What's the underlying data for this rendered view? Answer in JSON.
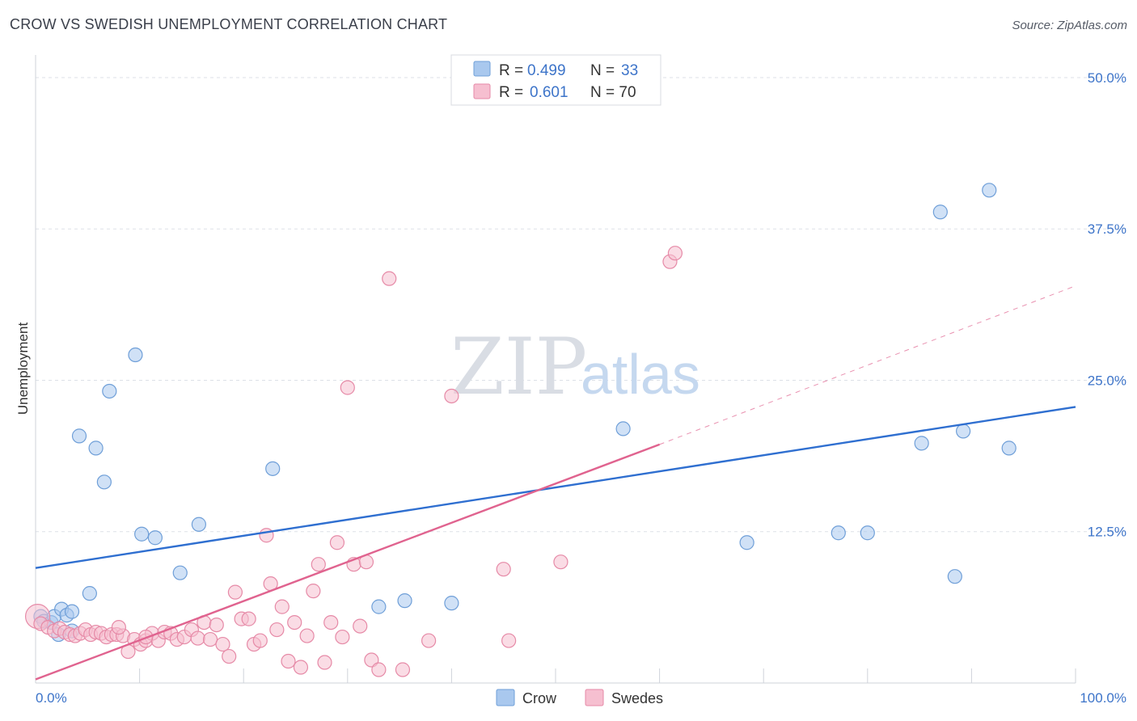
{
  "title": "CROW VS SWEDISH UNEMPLOYMENT CORRELATION CHART",
  "source": "Source: ZipAtlas.com",
  "watermark": {
    "zip": "ZIP",
    "atlas": "atlas"
  },
  "legend": {
    "series": [
      {
        "r_label": "R =",
        "r_value": "0.499",
        "n_label": "N =",
        "n_value": "33",
        "color": "#a9c8ee",
        "stroke": "#6f9fd8"
      },
      {
        "r_label": "R =",
        "r_value": "0.601",
        "n_label": "N = 70",
        "n_value": "",
        "color": "#f6bfd0",
        "stroke": "#e68aa7"
      }
    ]
  },
  "bottom_legend": [
    {
      "label": "Crow",
      "color": "#a9c8ee",
      "stroke": "#6f9fd8"
    },
    {
      "label": "Swedes",
      "color": "#f6bfd0",
      "stroke": "#e68aa7"
    }
  ],
  "chart_data": {
    "type": "scatter",
    "xlabel": "",
    "ylabel": "Unemployment",
    "xlim": [
      0,
      100
    ],
    "ylim": [
      0,
      50
    ],
    "x_tick_labels": [
      {
        "value": 0,
        "label": "0.0%"
      },
      {
        "value": 100,
        "label": "100.0%"
      }
    ],
    "y_tick_labels": [
      {
        "value": 12.5,
        "label": "12.5%"
      },
      {
        "value": 25.0,
        "label": "25.0%"
      },
      {
        "value": 37.5,
        "label": "37.5%"
      },
      {
        "value": 50.0,
        "label": "50.0%"
      }
    ],
    "grid": true,
    "legend_position": "top-center",
    "series": [
      {
        "name": "Crow",
        "color": "#a9c8ee",
        "stroke": "#6f9fd8",
        "trend": {
          "x0": 0,
          "y0": 9.5,
          "x1": 100,
          "y1": 22.8,
          "color": "#2f6fd0"
        },
        "points": [
          [
            0.5,
            5.5
          ],
          [
            0.8,
            5.1
          ],
          [
            1.5,
            5.0
          ],
          [
            1.8,
            5.5
          ],
          [
            2.2,
            4.0
          ],
          [
            2.5,
            6.1
          ],
          [
            3.0,
            5.6
          ],
          [
            3.5,
            5.9
          ],
          [
            3.5,
            4.3
          ],
          [
            5.2,
            7.4
          ],
          [
            4.2,
            20.4
          ],
          [
            5.8,
            19.4
          ],
          [
            6.6,
            16.6
          ],
          [
            7.1,
            24.1
          ],
          [
            9.6,
            27.1
          ],
          [
            10.2,
            12.3
          ],
          [
            11.5,
            12.0
          ],
          [
            13.9,
            9.1
          ],
          [
            15.7,
            13.1
          ],
          [
            22.8,
            17.7
          ],
          [
            33.0,
            6.3
          ],
          [
            35.5,
            6.8
          ],
          [
            40.0,
            6.6
          ],
          [
            56.5,
            21.0
          ],
          [
            68.4,
            11.6
          ],
          [
            77.2,
            12.4
          ],
          [
            80.0,
            12.4
          ],
          [
            85.2,
            19.8
          ],
          [
            87.0,
            38.9
          ],
          [
            88.4,
            8.8
          ],
          [
            89.2,
            20.8
          ],
          [
            91.7,
            40.7
          ],
          [
            93.6,
            19.4
          ]
        ]
      },
      {
        "name": "Swedes",
        "color": "#f6bfd0",
        "stroke": "#e68aa7",
        "trend": {
          "x0": 0,
          "y0": 0.3,
          "x1": 60,
          "y1": 19.7,
          "color": "#e0638f",
          "dash_x1": 100,
          "dash_y1": 32.8
        },
        "points": [
          [
            0.2,
            5.5
          ],
          [
            0.5,
            4.9
          ],
          [
            1.2,
            4.6
          ],
          [
            1.8,
            4.3
          ],
          [
            2.3,
            4.5
          ],
          [
            2.8,
            4.2
          ],
          [
            3.3,
            4.0
          ],
          [
            3.8,
            3.9
          ],
          [
            4.3,
            4.1
          ],
          [
            4.8,
            4.4
          ],
          [
            5.3,
            4.0
          ],
          [
            5.8,
            4.2
          ],
          [
            6.3,
            4.1
          ],
          [
            6.8,
            3.8
          ],
          [
            7.3,
            4.0
          ],
          [
            7.8,
            4.0
          ],
          [
            8.4,
            3.9
          ],
          [
            8.9,
            2.6
          ],
          [
            9.5,
            3.6
          ],
          [
            10.1,
            3.2
          ],
          [
            10.6,
            3.5
          ],
          [
            11.2,
            4.1
          ],
          [
            11.8,
            3.5
          ],
          [
            12.4,
            4.2
          ],
          [
            13.0,
            4.1
          ],
          [
            13.6,
            3.6
          ],
          [
            14.3,
            3.8
          ],
          [
            15.0,
            4.4
          ],
          [
            15.6,
            3.7
          ],
          [
            16.2,
            5.0
          ],
          [
            16.8,
            3.6
          ],
          [
            17.4,
            4.8
          ],
          [
            18.0,
            3.2
          ],
          [
            18.6,
            2.2
          ],
          [
            19.2,
            7.5
          ],
          [
            19.8,
            5.3
          ],
          [
            20.5,
            5.3
          ],
          [
            21.0,
            3.2
          ],
          [
            21.6,
            3.5
          ],
          [
            22.2,
            12.2
          ],
          [
            22.6,
            8.2
          ],
          [
            23.2,
            4.4
          ],
          [
            23.7,
            6.3
          ],
          [
            24.3,
            1.8
          ],
          [
            24.9,
            5.0
          ],
          [
            25.5,
            1.3
          ],
          [
            26.1,
            3.9
          ],
          [
            26.7,
            7.6
          ],
          [
            27.2,
            9.8
          ],
          [
            27.8,
            1.7
          ],
          [
            28.4,
            5.0
          ],
          [
            29.0,
            11.6
          ],
          [
            29.5,
            3.8
          ],
          [
            30.0,
            24.4
          ],
          [
            30.6,
            9.8
          ],
          [
            31.2,
            4.7
          ],
          [
            31.8,
            10.0
          ],
          [
            32.3,
            1.9
          ],
          [
            33.0,
            1.1
          ],
          [
            34.0,
            33.4
          ],
          [
            35.3,
            1.1
          ],
          [
            40.0,
            23.7
          ],
          [
            45.0,
            9.4
          ],
          [
            45.5,
            3.5
          ],
          [
            50.5,
            10.0
          ],
          [
            61.0,
            34.8
          ],
          [
            61.5,
            35.5
          ],
          [
            37.8,
            3.5
          ],
          [
            8.0,
            4.6
          ],
          [
            10.6,
            3.8
          ]
        ]
      }
    ]
  }
}
